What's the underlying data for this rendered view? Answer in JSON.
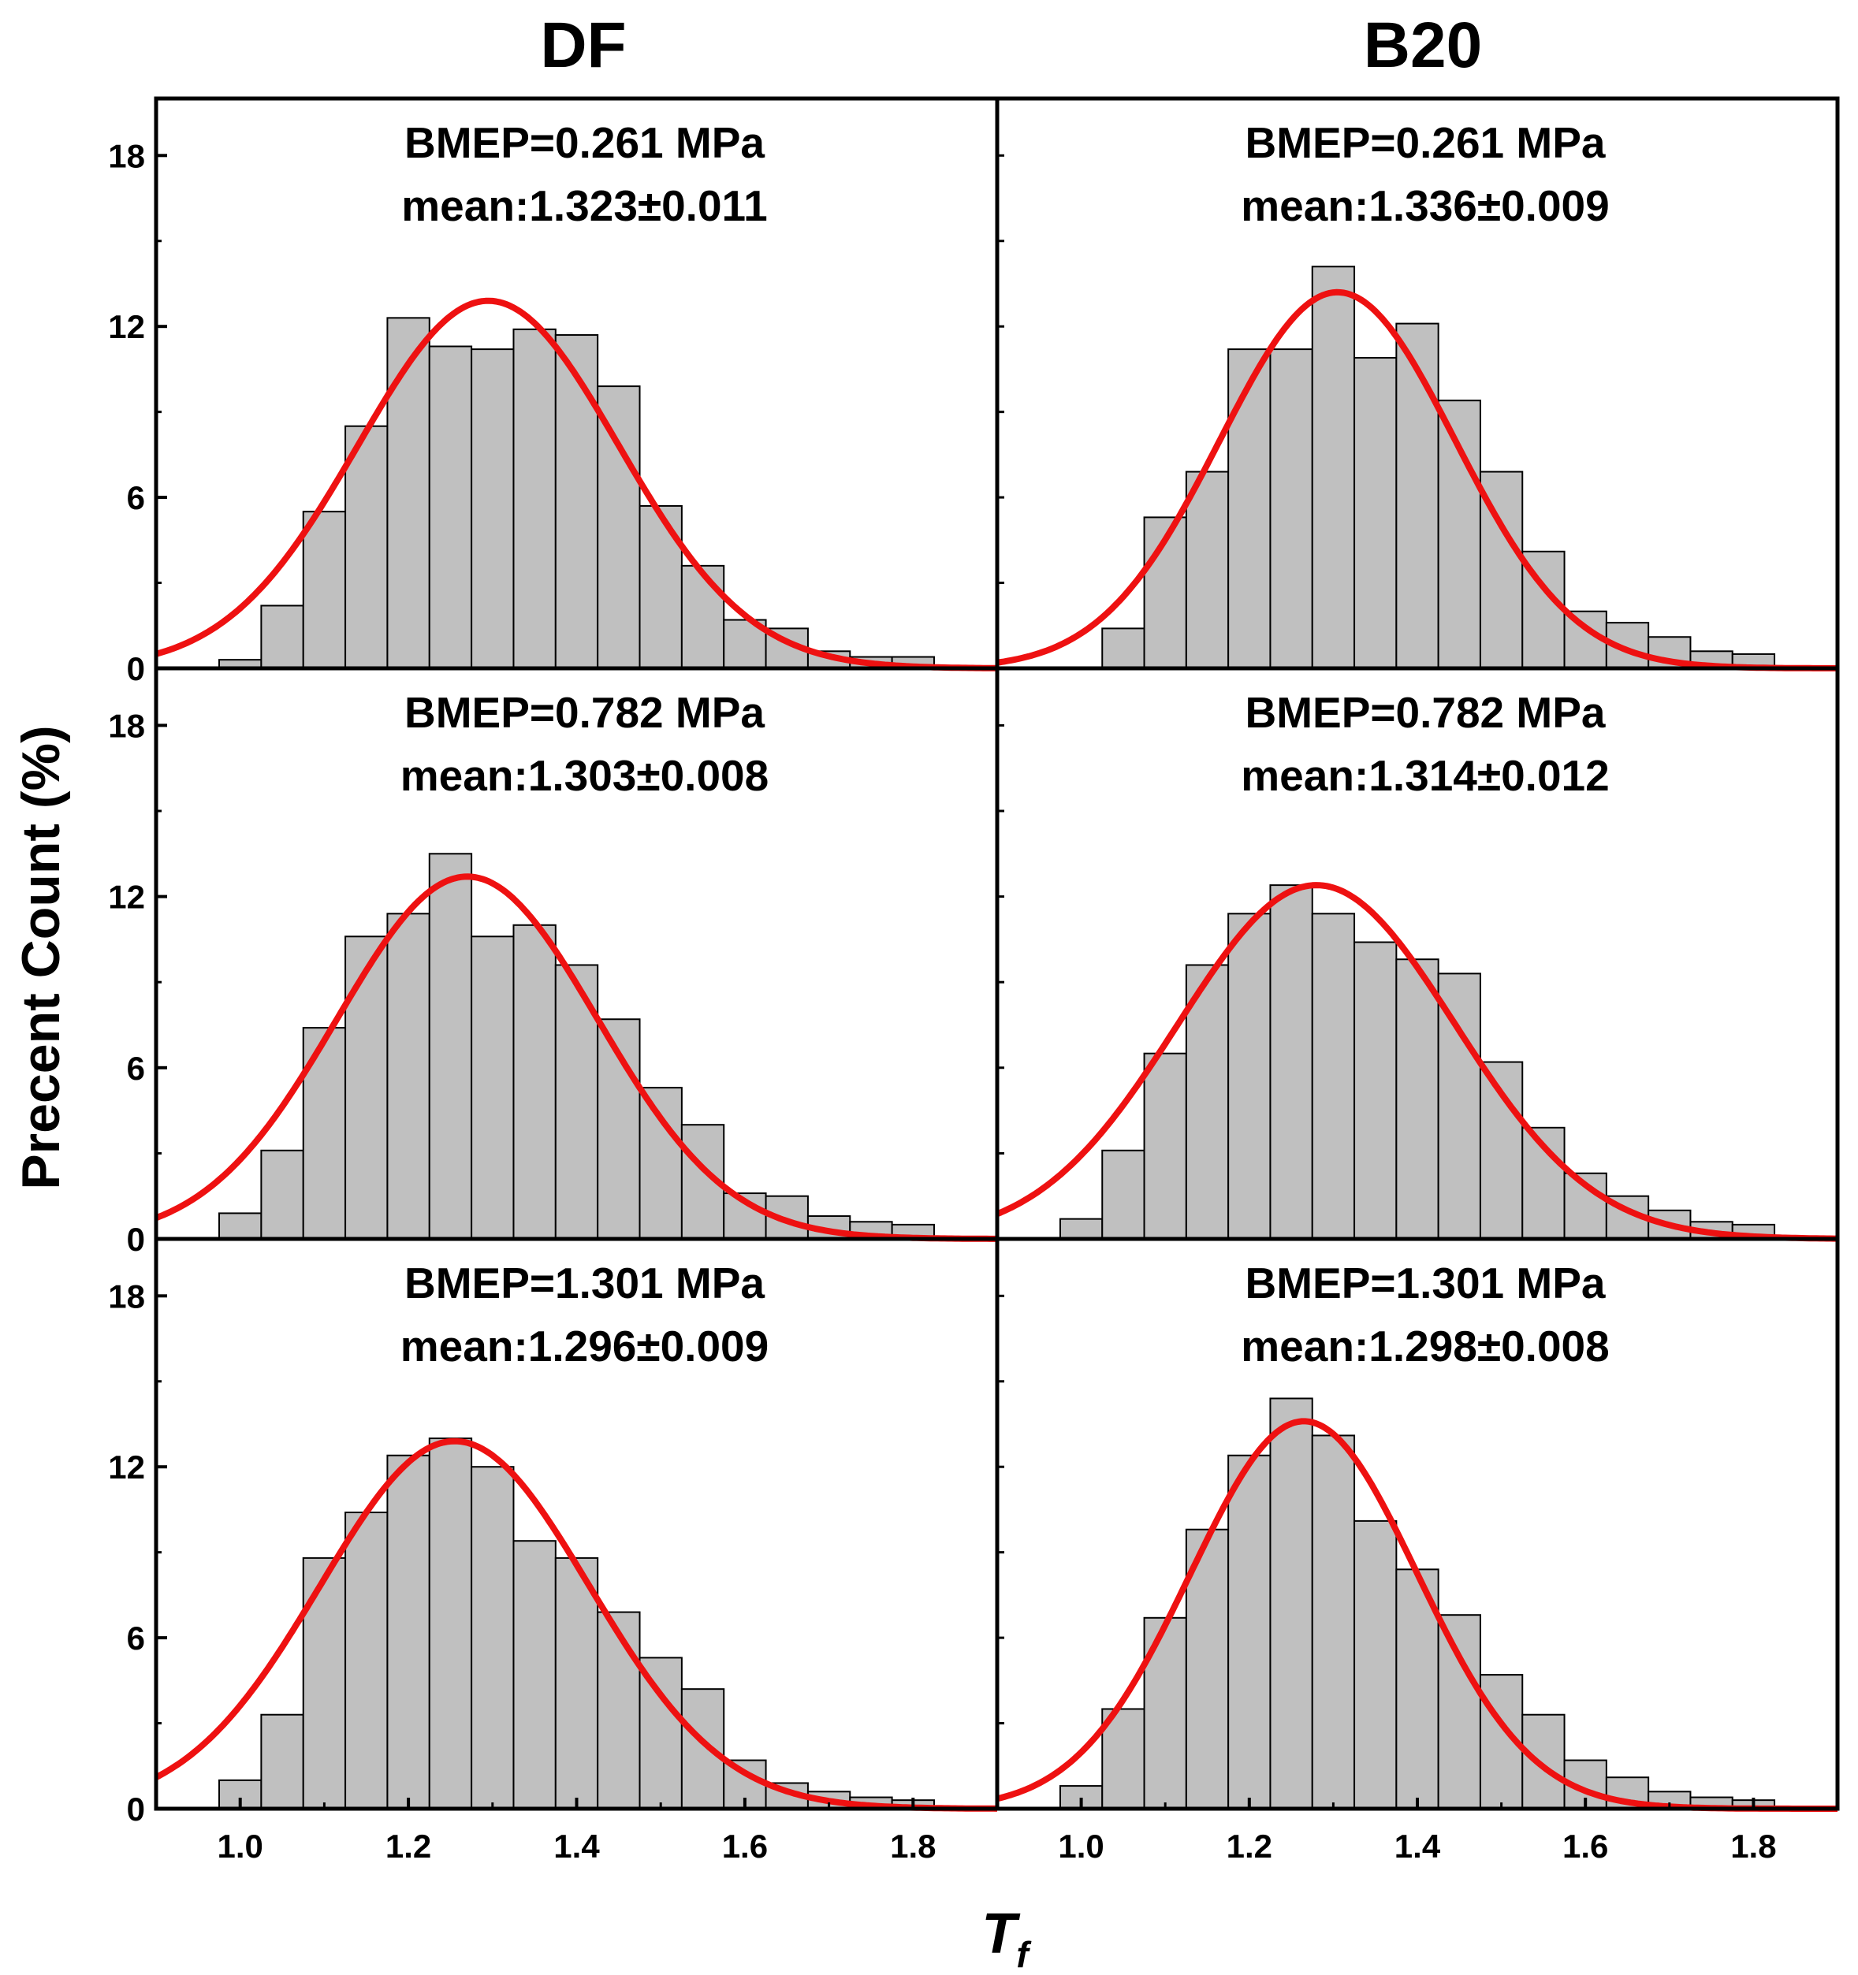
{
  "chart_data": {
    "type": "bar",
    "layout": "3x2 grid of histograms with normal-distribution fit curves",
    "column_titles": [
      "DF",
      "B20"
    ],
    "xlabel": "T",
    "xlabel_subscript": "f",
    "ylabel": "Precent Count (%)",
    "xlim": [
      0.9,
      1.9
    ],
    "ylim": [
      0,
      20
    ],
    "x_ticks": [
      1.0,
      1.2,
      1.4,
      1.6,
      1.8
    ],
    "x_tick_labels": [
      "1.0",
      "1.2",
      "1.4",
      "1.6",
      "1.8"
    ],
    "y_ticks": [
      0,
      6,
      12,
      18
    ],
    "y_tick_labels": [
      "0",
      "6",
      "12",
      "18"
    ],
    "bin_edges": [
      0.975,
      1.025,
      1.075,
      1.125,
      1.175,
      1.225,
      1.275,
      1.325,
      1.375,
      1.425,
      1.475,
      1.525,
      1.575,
      1.625,
      1.675,
      1.725,
      1.775,
      1.825
    ],
    "colors": {
      "bar_fill": "#c0c0c0",
      "bar_stroke": "#000000",
      "fit_curve": "#ee1111",
      "frame": "#000000"
    },
    "panels": [
      {
        "fuel": "DF",
        "bmep": "BMEP=0.261 MPa",
        "mean": "mean:1.323±0.011",
        "values": [
          0.3,
          2.2,
          5.5,
          8.5,
          12.3,
          11.3,
          11.2,
          11.9,
          11.7,
          9.9,
          5.7,
          3.6,
          1.7,
          1.4,
          0.6,
          0.4,
          0.4
        ],
        "fit": {
          "peak": 12.9,
          "mu": 1.295,
          "sigma": 0.155
        }
      },
      {
        "fuel": "B20",
        "bmep": "BMEP=0.261 MPa",
        "mean": "mean:1.336±0.009",
        "values": [
          0,
          1.4,
          5.3,
          6.9,
          11.2,
          11.2,
          14.1,
          10.9,
          12.1,
          9.4,
          6.9,
          4.1,
          2.0,
          1.6,
          1.1,
          0.6,
          0.5
        ],
        "fit": {
          "peak": 13.2,
          "mu": 1.305,
          "sigma": 0.14
        }
      },
      {
        "fuel": "DF",
        "bmep": "BMEP=0.782 MPa",
        "mean": "mean:1.303±0.008",
        "values": [
          0.9,
          3.1,
          7.4,
          10.6,
          11.4,
          13.5,
          10.6,
          11.0,
          9.6,
          7.7,
          5.3,
          4.0,
          1.6,
          1.5,
          0.8,
          0.6,
          0.5
        ],
        "fit": {
          "peak": 12.7,
          "mu": 1.27,
          "sigma": 0.155
        }
      },
      {
        "fuel": "B20",
        "bmep": "BMEP=0.782 MPa",
        "mean": "mean:1.314±0.012",
        "values": [
          0.7,
          3.1,
          6.5,
          9.6,
          11.4,
          12.4,
          11.4,
          10.4,
          9.8,
          9.3,
          6.2,
          3.9,
          2.3,
          1.5,
          1.0,
          0.6,
          0.5
        ],
        "fit": {
          "peak": 12.4,
          "mu": 1.28,
          "sigma": 0.165
        }
      },
      {
        "fuel": "DF",
        "bmep": "BMEP=1.301 MPa",
        "mean": "mean:1.296±0.009",
        "values": [
          1.0,
          3.3,
          8.8,
          10.4,
          12.4,
          13.0,
          12.0,
          9.4,
          8.8,
          6.9,
          5.3,
          4.2,
          1.7,
          0.9,
          0.6,
          0.4,
          0.3
        ],
        "fit": {
          "peak": 12.9,
          "mu": 1.255,
          "sigma": 0.16
        }
      },
      {
        "fuel": "B20",
        "bmep": "BMEP=1.301 MPa",
        "mean": "mean:1.298±0.008",
        "values": [
          0.8,
          3.5,
          6.7,
          9.8,
          12.4,
          14.4,
          13.1,
          10.1,
          8.4,
          6.8,
          4.7,
          3.3,
          1.7,
          1.1,
          0.6,
          0.4,
          0.3
        ],
        "fit": {
          "peak": 13.6,
          "mu": 1.265,
          "sigma": 0.135
        }
      }
    ]
  }
}
